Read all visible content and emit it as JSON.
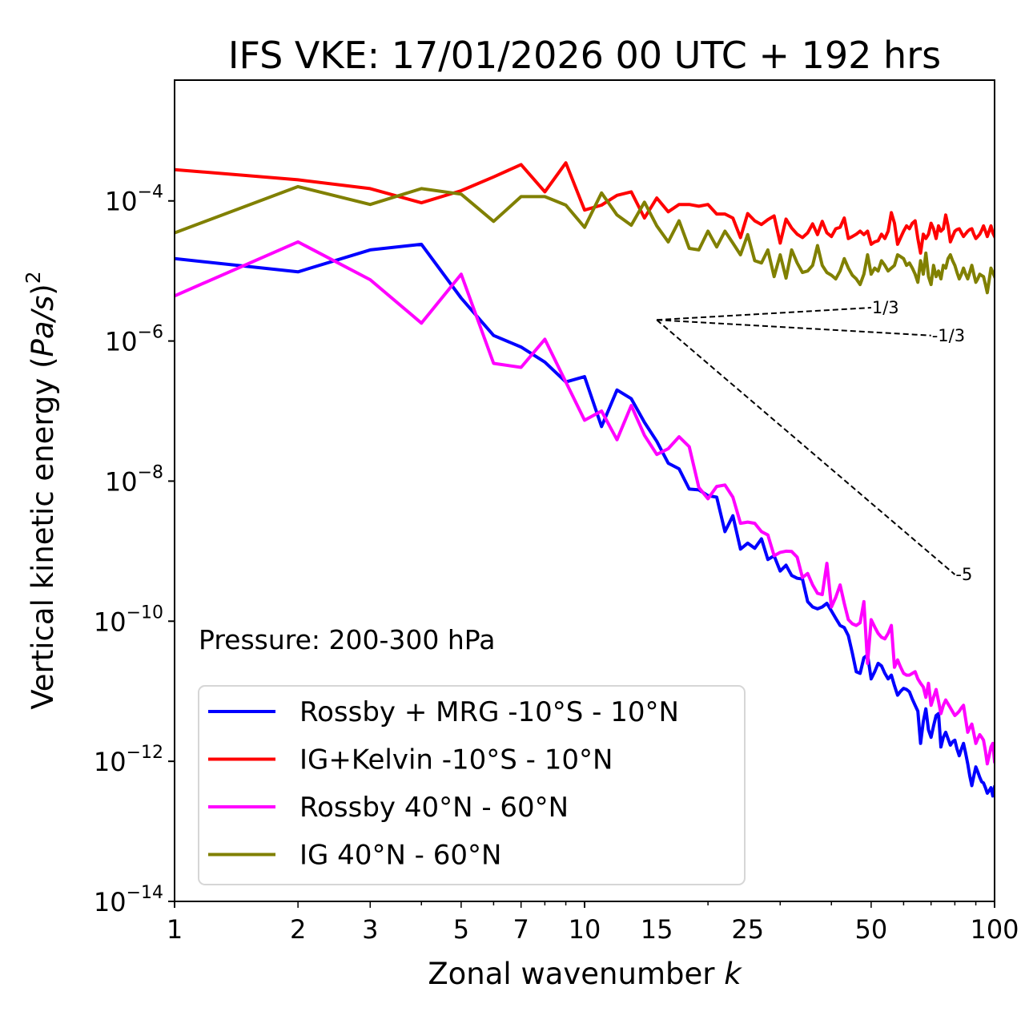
{
  "chart_data": {
    "type": "line",
    "title": "IFS VKE: 17/01/2026 00 UTC + 192 hrs",
    "xlabel": "Zonal wavenumber k",
    "xlabel_main": "Zonal wavenumber ",
    "xlabel_italic": "k",
    "ylabel": "Vertical kinetic energy (Pa/s)^2",
    "ylabel_main": "Vertical kinetic energy (",
    "ylabel_italic": "Pa/s",
    "ylabel_close": ")",
    "ylabel_sup": "2",
    "xscale": "log",
    "yscale": "log",
    "xlim": [
      1,
      100
    ],
    "ylim": [
      1e-14,
      0.0053
    ],
    "grid": false,
    "x_ticks": [
      1,
      2,
      3,
      5,
      7,
      10,
      15,
      25,
      50,
      100
    ],
    "x_tick_labels": [
      "1",
      "2",
      "3",
      "5",
      "7",
      "10",
      "15",
      "25",
      "50",
      "100"
    ],
    "y_ticks": [
      {
        "value": 0.0001,
        "base": "10",
        "exp": "−4"
      },
      {
        "value": 1e-06,
        "base": "10",
        "exp": "−6"
      },
      {
        "value": 1e-08,
        "base": "10",
        "exp": "−8"
      },
      {
        "value": 1e-10,
        "base": "10",
        "exp": "−10"
      },
      {
        "value": 1e-12,
        "base": "10",
        "exp": "−12"
      },
      {
        "value": 1e-14,
        "base": "10",
        "exp": "−14"
      }
    ],
    "annotation": "Pressure: 200-300 hPa",
    "legend_position": "lower-left",
    "series": [
      {
        "name": "Rossby + MRG -10°S - 10°N",
        "color": "#0000ff",
        "values": [
          1.5e-05,
          9.7e-06,
          2e-05,
          2.4e-05,
          4.1e-06,
          1.2e-06,
          8.2e-07,
          5e-07,
          2.6e-07,
          3.1e-07,
          6e-08,
          2e-07,
          1.5e-07,
          6.9e-08,
          3.7e-08,
          1.8e-08,
          1.5e-08,
          7.7e-09,
          7.5e-09,
          6.2e-09,
          5.9e-09,
          1.9e-09,
          3.2e-09,
          1.07e-09,
          1.3e-09,
          1.1e-09,
          1.5e-09,
          7.6e-10,
          8.6e-10,
          5.2e-10,
          6.3e-10,
          4.5e-10,
          4.1e-10,
          4e-10,
          1.9e-10,
          1.6e-10,
          1.5e-10,
          1.6e-10,
          1.8e-10,
          1.4e-10,
          1.1e-10,
          8.7e-11,
          8.1e-11,
          6.2e-11,
          3.5e-11,
          1.9e-11,
          1.8e-11,
          3e-11,
          3.3e-11,
          1.5e-11,
          1.9e-11,
          2.5e-11,
          2.3e-11,
          1.8e-11,
          1.5e-11,
          1.7e-11,
          1.2e-11,
          8.8e-12,
          1e-11,
          1.1e-11,
          1.06e-11,
          9.8e-12,
          7.7e-12,
          6.3e-12,
          5.2e-12,
          1.8e-12,
          3.7e-12,
          5.6e-12,
          2.8e-12,
          2.2e-12,
          3.2e-12,
          4.5e-12,
          4.8e-12,
          1.6e-12,
          2.2e-12,
          2.6e-12,
          2.1e-12,
          1.7e-12,
          1.9e-12,
          2e-12,
          1.5e-12,
          1.2e-12,
          1.5e-12,
          1.8e-12,
          1.3e-12,
          9.2e-13,
          6.2e-13,
          4.5e-13,
          6.2e-13,
          8.3e-13,
          7.1e-13,
          5.9e-13,
          5.1e-13,
          4.9e-13,
          4.2e-13,
          3.5e-13,
          3.8e-13,
          4.2e-13,
          3.2e-13,
          4.3e-13
        ]
      },
      {
        "name": "IG+Kelvin -10°S - 10°N",
        "color": "#ff0000",
        "values": [
          0.00028,
          0.0002,
          0.00015,
          9.4e-05,
          0.00014,
          0.00022,
          0.00033,
          0.000135,
          0.00035,
          7.4e-05,
          8.7e-05,
          0.00012,
          0.000135,
          5.7e-05,
          0.00011,
          7e-05,
          8.9e-05,
          8.9e-05,
          8.4e-05,
          8.9e-05,
          6.5e-05,
          6.5e-05,
          5.7e-05,
          3e-05,
          6.6e-05,
          5.2e-05,
          4.6e-05,
          5.4e-05,
          6.1e-05,
          2.5e-05,
          5.5e-05,
          4.1e-05,
          3.35e-05,
          3e-05,
          3.5e-05,
          4.7e-05,
          3.3e-05,
          5.1e-05,
          3.5e-05,
          3.1e-05,
          4e-05,
          4.2e-05,
          5.7e-05,
          2.9e-05,
          3.1e-05,
          3.35e-05,
          3.7e-05,
          3.3e-05,
          3.7e-05,
          2.4e-05,
          2.6e-05,
          2.7e-05,
          3.35e-05,
          2.9e-05,
          3.7e-05,
          6.8e-05,
          4.8e-05,
          2.4e-05,
          3e-05,
          3.7e-05,
          4.4e-05,
          4e-05,
          4.8e-05,
          5.2e-05,
          2.9e-05,
          1.8e-05,
          3.35e-05,
          2.9e-05,
          3.35e-05,
          4.8e-05,
          4e-05,
          2.9e-05,
          4.4e-05,
          3.7e-05,
          4e-05,
          6.3e-05,
          4.4e-05,
          2.6e-05,
          3.1e-05,
          3.7e-05,
          3.9e-05,
          4e-05,
          3.5e-05,
          3.1e-05,
          3.4e-05,
          3.7e-05,
          3.9e-05,
          4e-05,
          3.35e-05,
          2.9e-05,
          3.1e-05,
          3.35e-05,
          3.8e-05,
          4.4e-05,
          3.7e-05,
          3.1e-05,
          3.7e-05,
          4.4e-05,
          3.5e-05,
          3.1e-05
        ]
      },
      {
        "name": "Rossby 40°N - 60°N",
        "color": "#ff00ff",
        "values": [
          4.4e-06,
          2.6e-05,
          7.5e-06,
          1.8e-06,
          9e-06,
          4.8e-07,
          4.2e-07,
          1.06e-06,
          2.6e-07,
          7.4e-08,
          1e-07,
          3.9e-08,
          1.2e-07,
          4.5e-08,
          2.4e-08,
          2.9e-08,
          4.3e-08,
          3.1e-08,
          8.1e-09,
          5.6e-09,
          8.4e-09,
          8.8e-09,
          5.9e-09,
          2.5e-09,
          2.6e-09,
          2.5e-09,
          1.9e-09,
          1.7e-09,
          8.6e-10,
          9.6e-10,
          1e-09,
          9.9e-10,
          8.2e-10,
          4.2e-10,
          4.8e-10,
          3.3e-10,
          2.5e-10,
          2.4e-10,
          6.7e-10,
          1.6e-10,
          2.2e-10,
          3.3e-10,
          1.8e-10,
          1.05e-10,
          9.2e-11,
          8.7e-11,
          9.5e-11,
          1.9e-10,
          2.5e-11,
          1.05e-10,
          8.3e-11,
          6.7e-11,
          5.9e-11,
          5.6e-11,
          6.7e-11,
          8.7e-11,
          2.2e-11,
          2.8e-11,
          2.2e-11,
          1.8e-11,
          1.7e-11,
          1.7e-11,
          1.8e-11,
          1.9e-11,
          1.5e-11,
          1.3e-11,
          1.15e-11,
          8.2e-12,
          1.3e-11,
          6.3e-12,
          8.2e-12,
          1.06e-11,
          7.2e-12,
          4.8e-12,
          6.3e-12,
          7.5e-12,
          6.6e-12,
          5.8e-12,
          5.1e-12,
          4.5e-12,
          4.8e-12,
          5.2e-12,
          5.8e-12,
          6.3e-12,
          4e-12,
          2.6e-12,
          3e-12,
          3.4e-12,
          2.5e-12,
          1.8e-12,
          2.1e-12,
          2.4e-12,
          2.2e-12,
          2e-12,
          1.4e-12,
          9.2e-13,
          1.2e-12,
          1.6e-12,
          1.8e-12,
          9.9e-13
        ]
      },
      {
        "name": "IG 40°N - 60°N",
        "color": "#808000",
        "values": [
          3.5e-05,
          0.00016,
          8.9e-05,
          0.00015,
          0.000125,
          5.1e-05,
          0.000115,
          0.000115,
          8.7e-05,
          4.2e-05,
          0.00013,
          6.3e-05,
          4.5e-05,
          9.6e-05,
          4.4e-05,
          2.6e-05,
          5.2e-05,
          2.1e-05,
          2e-05,
          3.7e-05,
          2.2e-05,
          3.7e-05,
          2.5e-05,
          1.7e-05,
          3.3e-05,
          1.4e-05,
          1.3e-05,
          2e-05,
          8.3e-06,
          1.7e-05,
          7.9e-06,
          2e-05,
          1.3e-05,
          9.5e-06,
          1e-05,
          1.2e-05,
          2.3e-05,
          1.2e-05,
          9.5e-06,
          8.7e-06,
          7.7e-06,
          1e-05,
          1.5e-05,
          1.1e-05,
          8.7e-06,
          7.7e-06,
          6.4e-06,
          9e-06,
          1.7e-05,
          9e-06,
          1.1e-05,
          1e-05,
          1.4e-05,
          1.2e-05,
          1e-05,
          1.1e-05,
          1.2e-05,
          1.7e-05,
          1.6e-05,
          1.5e-05,
          1.2e-05,
          1.3e-05,
          1.1e-05,
          9e-06,
          6.9e-06,
          1.4e-05,
          9e-06,
          1.8e-05,
          8.3e-06,
          6.4e-06,
          1.2e-05,
          8.3e-06,
          1e-05,
          7.7e-06,
          1.2e-05,
          1.1e-05,
          1.5e-05,
          1.7e-05,
          1.4e-05,
          1.2e-05,
          9.5e-06,
          7.7e-06,
          9e-06,
          1.1e-05,
          9e-06,
          7.7e-06,
          9.5e-06,
          1.2e-05,
          9e-06,
          6.9e-06,
          7.7e-06,
          9e-06,
          8.6e-06,
          8.3e-06,
          6.4e-06,
          4.9e-06,
          7.3e-06,
          1.1e-05,
          9.5e-06,
          8.3e-06
        ]
      }
    ],
    "reference_lines": [
      {
        "label": "1/3",
        "slope": 0.3333,
        "k_start": 15,
        "k_end": 50,
        "y_start": 2e-06
      },
      {
        "label": "-1/3",
        "slope": -0.3333,
        "k_start": 15,
        "k_end": 70,
        "y_start": 2e-06
      },
      {
        "label": "-5",
        "slope": -5,
        "k_start": 15,
        "k_end": 80,
        "y_start": 2e-06
      }
    ]
  }
}
